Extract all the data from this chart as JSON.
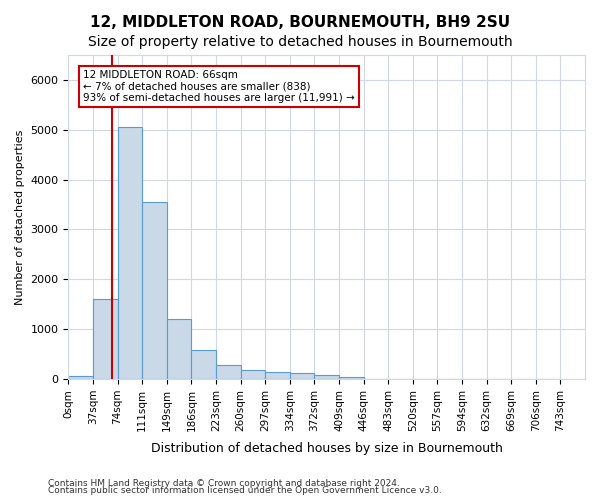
{
  "title": "12, MIDDLETON ROAD, BOURNEMOUTH, BH9 2SU",
  "subtitle": "Size of property relative to detached houses in Bournemouth",
  "xlabel": "Distribution of detached houses by size in Bournemouth",
  "ylabel": "Number of detached properties",
  "bin_labels": [
    "0sqm",
    "37sqm",
    "74sqm",
    "111sqm",
    "149sqm",
    "186sqm",
    "223sqm",
    "260sqm",
    "297sqm",
    "334sqm",
    "372sqm",
    "409sqm",
    "446sqm",
    "483sqm",
    "520sqm",
    "557sqm",
    "594sqm",
    "632sqm",
    "669sqm",
    "706sqm",
    "743sqm"
  ],
  "bar_values": [
    55,
    1600,
    5050,
    3550,
    1200,
    580,
    290,
    175,
    145,
    130,
    80,
    45,
    5,
    0,
    0,
    0,
    0,
    0,
    0,
    0
  ],
  "bar_color": "#c9d9e8",
  "bar_edge_color": "#5b9bd5",
  "red_line_x": 1.78,
  "annotation_text1": "12 MIDDLETON ROAD: 66sqm",
  "annotation_text2": "← 7% of detached houses are smaller (838)",
  "annotation_text3": "93% of semi-detached houses are larger (11,991) →",
  "annotation_box_color": "#ffffff",
  "annotation_box_edge": "#cc0000",
  "red_line_color": "#cc0000",
  "ylim": [
    0,
    6500
  ],
  "footer1": "Contains HM Land Registry data © Crown copyright and database right 2024.",
  "footer2": "Contains public sector information licensed under the Open Government Licence v3.0.",
  "bg_color": "#ffffff",
  "grid_color": "#d0d8e8",
  "title_fontsize": 11,
  "subtitle_fontsize": 10
}
